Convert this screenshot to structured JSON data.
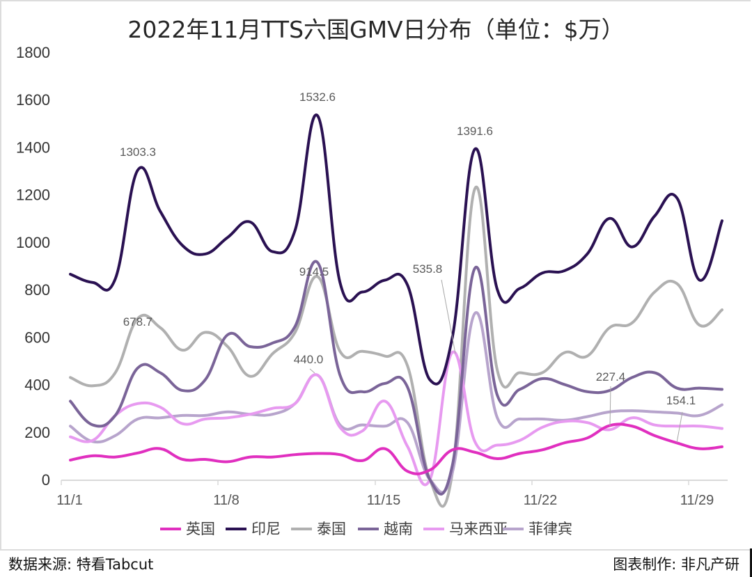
{
  "header": {
    "title": "2022年11月TTS六国GMV日分布（单位：$万）"
  },
  "footer": {
    "source": "数据来源: 特看Tabcut",
    "author": "图表制作: 非凡产研"
  },
  "chart_data": {
    "type": "line",
    "title": "2022年11月TTS六国GMV日分布（单位：$万）",
    "xlabel": "",
    "ylabel": "",
    "ylim": [
      0,
      1800
    ],
    "yticks": [
      "0",
      "200",
      "400",
      "600",
      "800",
      "1000",
      "1200",
      "1400",
      "1600",
      "1800"
    ],
    "xticks": [
      "11/1",
      "11/8",
      "11/15",
      "11/22",
      "11/29"
    ],
    "grid": false,
    "legend_position": "bottom",
    "x": [
      "11/1",
      "11/2",
      "11/3",
      "11/4",
      "11/5",
      "11/6",
      "11/7",
      "11/8",
      "11/9",
      "11/10",
      "11/11",
      "11/12",
      "11/13",
      "11/14",
      "11/15",
      "11/16",
      "11/17",
      "11/18",
      "11/19",
      "11/20",
      "11/21",
      "11/22",
      "11/23",
      "11/24",
      "11/25",
      "11/26",
      "11/27",
      "11/28",
      "11/29",
      "11/30"
    ],
    "series": [
      {
        "name": "英国",
        "color": "#e02fbf",
        "values": [
          82,
          100,
          95,
          112,
          130,
          85,
          85,
          75,
          95,
          95,
          105,
          110,
          105,
          80,
          130,
          35,
          40,
          125,
          115,
          88,
          110,
          125,
          155,
          175,
          227.4,
          225,
          185,
          154.1,
          130,
          138
        ]
      },
      {
        "name": "印尼",
        "color": "#2a1152",
        "values": [
          865,
          830,
          845,
          1303.3,
          1130,
          985,
          950,
          1020,
          1085,
          960,
          1050,
          1532.6,
          830,
          790,
          840,
          820,
          420,
          600,
          1391.6,
          800,
          805,
          870,
          880,
          950,
          1100,
          980,
          1110,
          1185,
          840,
          1090
        ]
      },
      {
        "name": "泰国",
        "color": "#b0b0b0",
        "values": [
          430,
          395,
          450,
          678.7,
          640,
          545,
          620,
          560,
          435,
          530,
          620,
          855,
          540,
          540,
          520,
          480,
          0,
          30,
          1225,
          460,
          450,
          450,
          535,
          520,
          640,
          660,
          790,
          825,
          650,
          715
        ]
      },
      {
        "name": "越南",
        "color": "#7a6498",
        "values": [
          330,
          230,
          270,
          470,
          450,
          375,
          420,
          610,
          560,
          575,
          645,
          914.5,
          440,
          370,
          405,
          390,
          0,
          60,
          890,
          355,
          380,
          425,
          400,
          370,
          375,
          430,
          450,
          385,
          385,
          380
        ]
      },
      {
        "name": "马来西亚",
        "color": "#e79af0",
        "values": [
          180,
          165,
          270,
          320,
          305,
          235,
          255,
          260,
          275,
          300,
          320,
          440,
          220,
          205,
          330,
          140,
          0,
          535.8,
          160,
          145,
          165,
          220,
          245,
          240,
          210,
          260,
          230,
          225,
          225,
          215
        ]
      },
      {
        "name": "菲律宾",
        "color": "#b7a4cc",
        "values": [
          225,
          160,
          185,
          255,
          260,
          270,
          270,
          285,
          275,
          275,
          320,
          440,
          230,
          230,
          225,
          240,
          0,
          30,
          700,
          260,
          255,
          255,
          250,
          265,
          285,
          290,
          285,
          280,
          270,
          315
        ]
      }
    ],
    "annotations": [
      {
        "series": "印尼",
        "x": "11/4",
        "label": "1303.3"
      },
      {
        "series": "印尼",
        "x": "11/12",
        "label": "1532.6"
      },
      {
        "series": "印尼",
        "x": "11/19",
        "label": "1391.6"
      },
      {
        "series": "泰国",
        "x": "11/4",
        "label": "678.7"
      },
      {
        "series": "越南",
        "x": "11/12",
        "label": "914.5"
      },
      {
        "series": "菲律宾",
        "x": "11/12",
        "label": "440.0"
      },
      {
        "series": "马来西亚",
        "x": "11/18",
        "label": "535.8"
      },
      {
        "series": "英国",
        "x": "11/25",
        "label": "227.4"
      },
      {
        "series": "英国",
        "x": "11/28",
        "label": "154.1"
      }
    ]
  }
}
